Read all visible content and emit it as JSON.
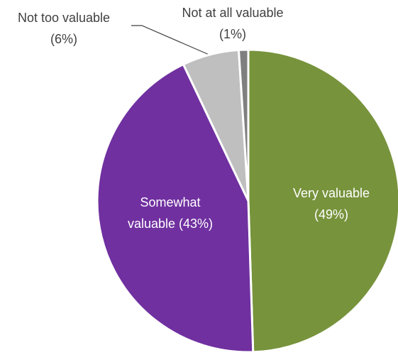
{
  "chart_data": {
    "type": "pie",
    "categories": [
      "Very valuable",
      "Somewhat valuable",
      "Not too valuable",
      "Not at all valuable"
    ],
    "values": [
      49,
      43,
      6,
      1
    ],
    "value_labels": [
      "(49%)",
      "(43%)",
      "(6%)",
      "(1%)"
    ],
    "colors": [
      "#77933c",
      "#7030a0",
      "#bfbfbf",
      "#7f7f7f"
    ]
  }
}
